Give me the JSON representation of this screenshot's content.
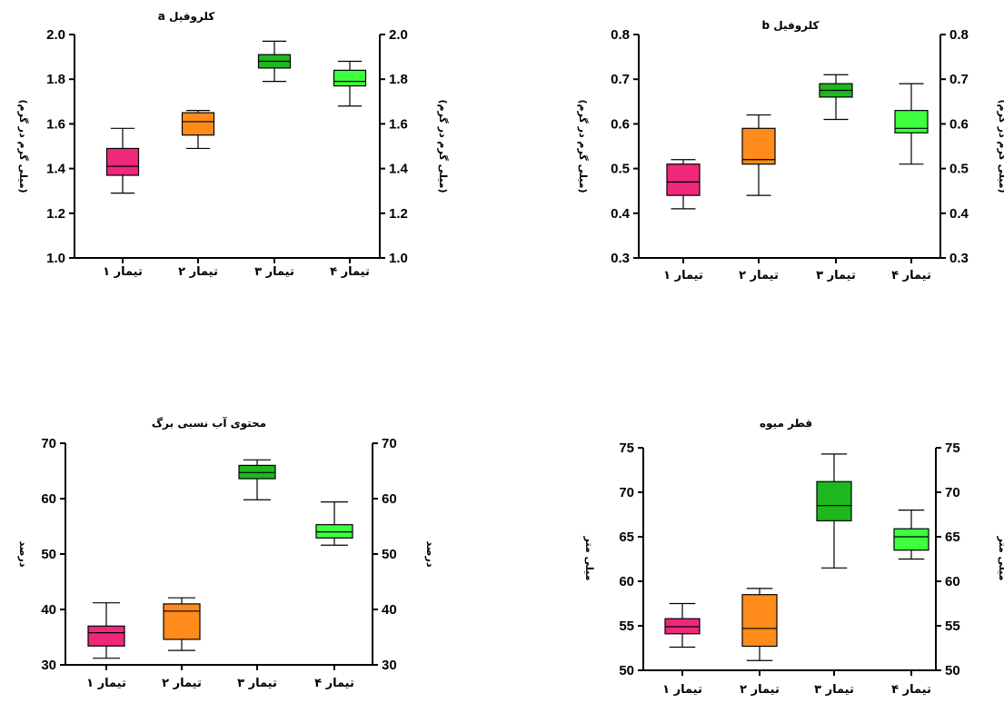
{
  "colors": {
    "t1": "#f0287a",
    "t2": "#ff8c1a",
    "t3": "#1db81d",
    "t4": "#3dff3d"
  },
  "chart_data": [
    {
      "type": "box",
      "title": "کلروفیل a",
      "ylabel": "(میلی گرم در گرم)",
      "ylim": [
        1.0,
        2.0
      ],
      "yticks": [
        "1.0",
        "1.2",
        "1.4",
        "1.6",
        "1.8",
        "2.0"
      ],
      "categories": [
        "تیمار ۱",
        "تیمار ۲",
        "تیمار ۳",
        "تیمار ۴"
      ],
      "boxes": [
        {
          "min": 1.29,
          "q1": 1.37,
          "median": 1.41,
          "q3": 1.49,
          "max": 1.58
        },
        {
          "min": 1.49,
          "q1": 1.55,
          "median": 1.61,
          "q3": 1.65,
          "max": 1.66
        },
        {
          "min": 1.79,
          "q1": 1.85,
          "median": 1.88,
          "q3": 1.91,
          "max": 1.97
        },
        {
          "min": 1.68,
          "q1": 1.77,
          "median": 1.79,
          "q3": 1.84,
          "max": 1.88
        }
      ]
    },
    {
      "type": "box",
      "title": "کلروفیل b",
      "ylabel": "(میلی گرم در گرم)",
      "ylim": [
        0.3,
        0.8
      ],
      "yticks": [
        "0.3",
        "0.4",
        "0.5",
        "0.6",
        "0.7",
        "0.8"
      ],
      "categories": [
        "تیمار ۱",
        "تیمار ۲",
        "تیمار ۳",
        "تیمار ۴"
      ],
      "boxes": [
        {
          "min": 0.41,
          "q1": 0.44,
          "median": 0.47,
          "q3": 0.51,
          "max": 0.52
        },
        {
          "min": 0.44,
          "q1": 0.51,
          "median": 0.52,
          "q3": 0.59,
          "max": 0.62
        },
        {
          "min": 0.61,
          "q1": 0.66,
          "median": 0.675,
          "q3": 0.69,
          "max": 0.71
        },
        {
          "min": 0.51,
          "q1": 0.58,
          "median": 0.59,
          "q3": 0.63,
          "max": 0.69
        }
      ]
    },
    {
      "type": "box",
      "title": "محتوی آب نسبی برگ",
      "ylabel": "درصد",
      "ylim": [
        30,
        70
      ],
      "yticks": [
        "30",
        "40",
        "50",
        "60",
        "70"
      ],
      "categories": [
        "تیمار ۱",
        "تیمار ۲",
        "تیمار ۳",
        "تیمار ۴"
      ],
      "boxes": [
        {
          "min": 31.2,
          "q1": 33.4,
          "median": 35.8,
          "q3": 37.0,
          "max": 41.2
        },
        {
          "min": 32.6,
          "q1": 34.6,
          "median": 39.7,
          "q3": 41.0,
          "max": 42.1
        },
        {
          "min": 59.8,
          "q1": 63.6,
          "median": 64.7,
          "q3": 66.0,
          "max": 67.0
        },
        {
          "min": 51.6,
          "q1": 52.9,
          "median": 54.0,
          "q3": 55.3,
          "max": 59.4
        }
      ]
    },
    {
      "type": "box",
      "title": "قطر میوه",
      "ylabel": "میلی متر",
      "ylim": [
        50,
        75
      ],
      "yticks": [
        "50",
        "55",
        "60",
        "65",
        "70",
        "75"
      ],
      "categories": [
        "تیمار ۱",
        "تیمار ۲",
        "تیمار ۳",
        "تیمار ۴"
      ],
      "boxes": [
        {
          "min": 52.6,
          "q1": 54.1,
          "median": 54.9,
          "q3": 55.8,
          "max": 57.5
        },
        {
          "min": 51.1,
          "q1": 52.7,
          "median": 54.7,
          "q3": 58.5,
          "max": 59.2
        },
        {
          "min": 61.5,
          "q1": 66.8,
          "median": 68.5,
          "q3": 71.2,
          "max": 74.3
        },
        {
          "min": 62.5,
          "q1": 63.5,
          "median": 65.0,
          "q3": 65.9,
          "max": 68.0
        }
      ]
    }
  ]
}
